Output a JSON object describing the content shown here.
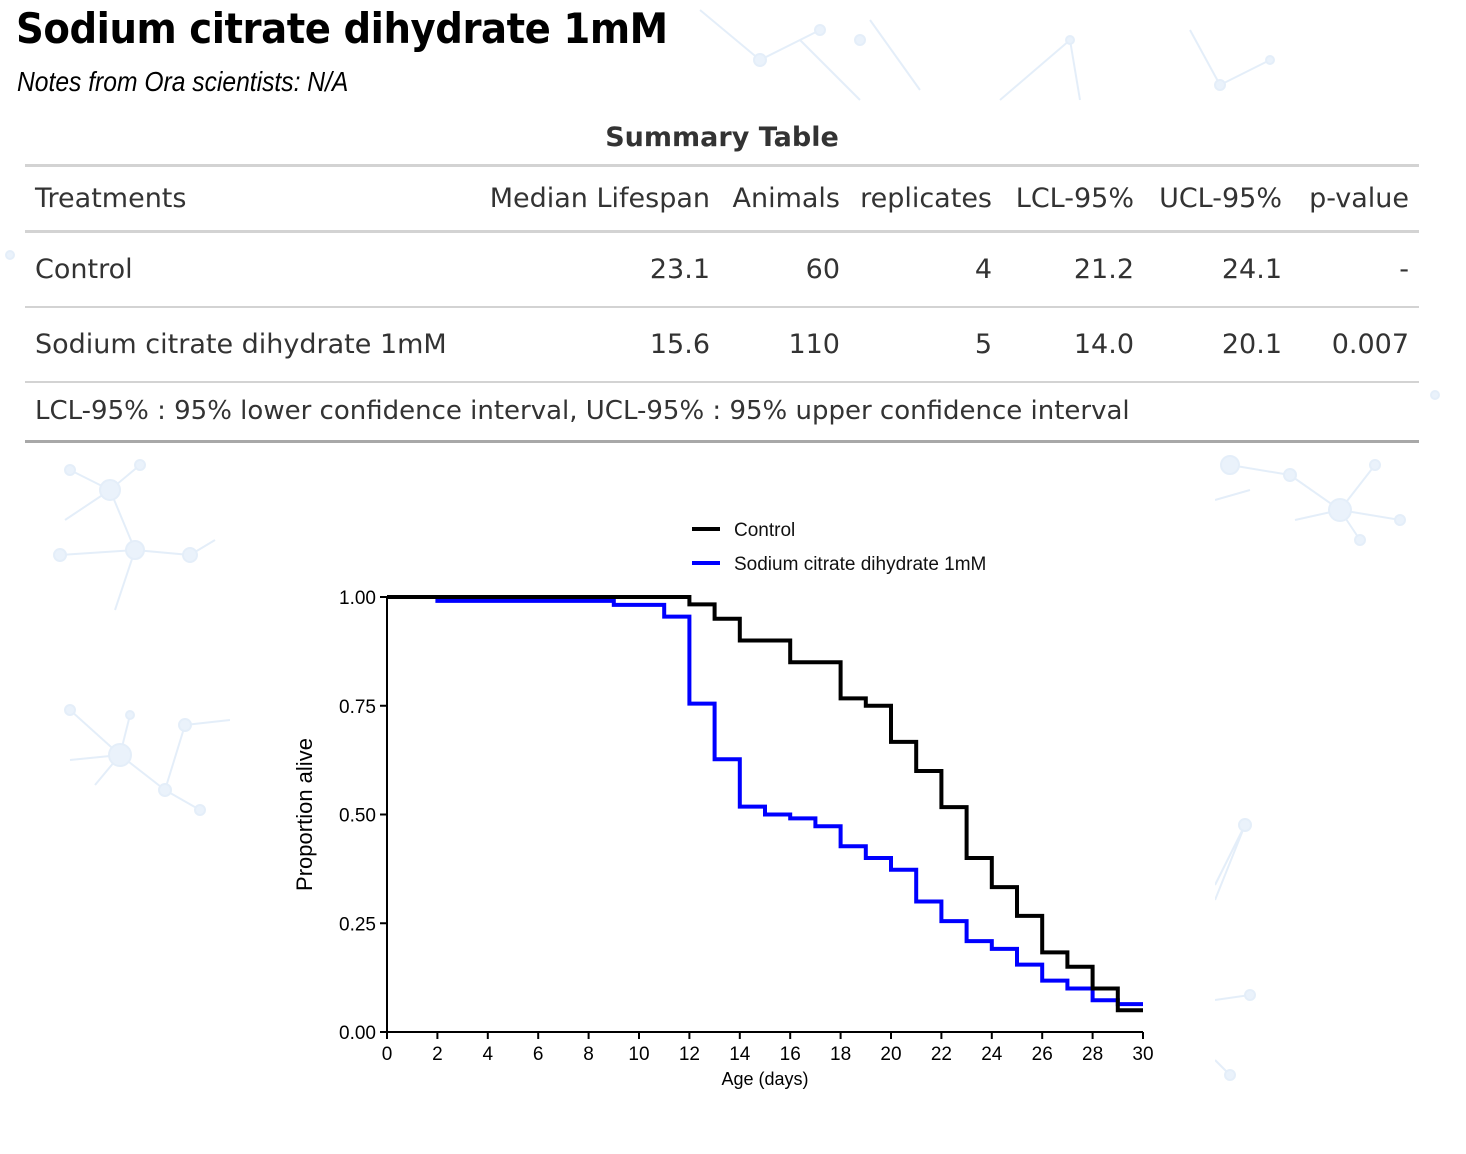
{
  "page": {
    "title": "Sodium citrate dihydrate 1mM",
    "notes": "Notes from Ora scientists: N/A"
  },
  "summary_table": {
    "title": "Summary Table",
    "columns": [
      "Treatments",
      "Median Lifespan",
      "Animals",
      "replicates",
      "LCL-95%",
      "UCL-95%",
      "p-value"
    ],
    "rows": [
      [
        "Control",
        "23.1",
        "60",
        "4",
        "21.2",
        "24.1",
        "-"
      ],
      [
        "Sodium citrate dihydrate 1mM",
        "15.6",
        "110",
        "5",
        "14.0",
        "20.1",
        "0.007"
      ]
    ],
    "footnote": "LCL-95% : 95% lower confidence interval, UCL-95% : 95% upper confidence interval"
  },
  "chart_data": {
    "type": "line",
    "subtype": "step",
    "title": "",
    "xlabel": "Age (days)",
    "ylabel": "Proportion alive",
    "xlim": [
      0,
      30
    ],
    "ylim": [
      0,
      1
    ],
    "x_ticks": [
      "0",
      "2",
      "4",
      "6",
      "8",
      "10",
      "12",
      "14",
      "16",
      "18",
      "20",
      "22",
      "24",
      "26",
      "28",
      "30"
    ],
    "x_tick_values": [
      0,
      2,
      4,
      6,
      8,
      10,
      12,
      14,
      16,
      18,
      20,
      22,
      24,
      26,
      28,
      30
    ],
    "y_ticks": [
      "0.00",
      "0.25",
      "0.50",
      "0.75",
      "1.00"
    ],
    "y_tick_values": [
      0,
      0.25,
      0.5,
      0.75,
      1.0
    ],
    "grid": false,
    "legend_position": "top",
    "series": [
      {
        "name": "Control",
        "color": "#000000",
        "x": [
          0,
          12,
          13,
          14,
          16,
          18,
          19,
          20,
          21,
          22,
          23,
          24,
          25,
          26,
          27,
          28,
          29,
          30
        ],
        "y": [
          1.0,
          0.983,
          0.95,
          0.9,
          0.85,
          0.767,
          0.75,
          0.667,
          0.6,
          0.517,
          0.4,
          0.333,
          0.267,
          0.183,
          0.15,
          0.1,
          0.05,
          0.05
        ]
      },
      {
        "name": "Sodium citrate dihydrate 1mM",
        "color": "#0000ff",
        "x": [
          0,
          2,
          9,
          11,
          12,
          13,
          14,
          15,
          16,
          17,
          18,
          19,
          20,
          21,
          22,
          23,
          24,
          25,
          26,
          27,
          28,
          29,
          30
        ],
        "y": [
          1.0,
          0.991,
          0.982,
          0.955,
          0.755,
          0.627,
          0.518,
          0.5,
          0.491,
          0.473,
          0.427,
          0.4,
          0.373,
          0.3,
          0.255,
          0.209,
          0.191,
          0.155,
          0.118,
          0.1,
          0.073,
          0.064,
          0.064
        ]
      }
    ]
  }
}
